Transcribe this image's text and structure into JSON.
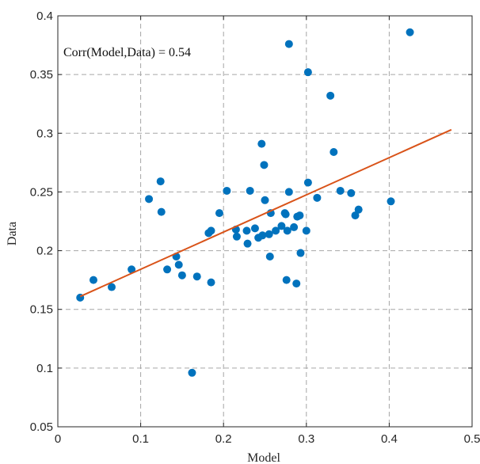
{
  "chart_data": {
    "type": "scatter",
    "title": "",
    "xlabel": "Model",
    "ylabel": "Data",
    "xlim": [
      0,
      0.5
    ],
    "ylim": [
      0.05,
      0.4
    ],
    "xticks": [
      "0",
      "0.1",
      "0.2",
      "0.3",
      "0.4",
      "0.5"
    ],
    "yticks": [
      "0.05",
      "0.1",
      "0.15",
      "0.2",
      "0.25",
      "0.3",
      "0.35",
      "0.4"
    ],
    "grid": true,
    "annotation": "Corr(Model,Data) = 0.54",
    "colors": {
      "points": "#0072BD",
      "fit_line": "#D95319"
    },
    "series": [
      {
        "points": [
          [
            0.027,
            0.16
          ],
          [
            0.043,
            0.175
          ],
          [
            0.065,
            0.169
          ],
          [
            0.089,
            0.184
          ],
          [
            0.11,
            0.244
          ],
          [
            0.124,
            0.259
          ],
          [
            0.125,
            0.233
          ],
          [
            0.132,
            0.184
          ],
          [
            0.143,
            0.195
          ],
          [
            0.146,
            0.188
          ],
          [
            0.15,
            0.179
          ],
          [
            0.162,
            0.096
          ],
          [
            0.168,
            0.178
          ],
          [
            0.182,
            0.215
          ],
          [
            0.185,
            0.217
          ],
          [
            0.185,
            0.173
          ],
          [
            0.195,
            0.232
          ],
          [
            0.204,
            0.251
          ],
          [
            0.215,
            0.218
          ],
          [
            0.216,
            0.212
          ],
          [
            0.228,
            0.217
          ],
          [
            0.229,
            0.206
          ],
          [
            0.232,
            0.251
          ],
          [
            0.238,
            0.219
          ],
          [
            0.242,
            0.211
          ],
          [
            0.246,
            0.291
          ],
          [
            0.247,
            0.213
          ],
          [
            0.249,
            0.273
          ],
          [
            0.25,
            0.243
          ],
          [
            0.255,
            0.214
          ],
          [
            0.256,
            0.195
          ],
          [
            0.257,
            0.232
          ],
          [
            0.263,
            0.217
          ],
          [
            0.27,
            0.221
          ],
          [
            0.274,
            0.232
          ],
          [
            0.275,
            0.231
          ],
          [
            0.276,
            0.175
          ],
          [
            0.277,
            0.217
          ],
          [
            0.279,
            0.376
          ],
          [
            0.279,
            0.25
          ],
          [
            0.285,
            0.22
          ],
          [
            0.288,
            0.172
          ],
          [
            0.289,
            0.229
          ],
          [
            0.292,
            0.23
          ],
          [
            0.293,
            0.198
          ],
          [
            0.3,
            0.217
          ],
          [
            0.302,
            0.352
          ],
          [
            0.302,
            0.258
          ],
          [
            0.313,
            0.245
          ],
          [
            0.329,
            0.332
          ],
          [
            0.333,
            0.284
          ],
          [
            0.341,
            0.251
          ],
          [
            0.354,
            0.249
          ],
          [
            0.359,
            0.23
          ],
          [
            0.363,
            0.235
          ],
          [
            0.402,
            0.242
          ],
          [
            0.425,
            0.386
          ]
        ]
      }
    ],
    "fit_line": {
      "x": [
        0.027,
        0.475
      ],
      "y": [
        0.161,
        0.303
      ]
    }
  }
}
